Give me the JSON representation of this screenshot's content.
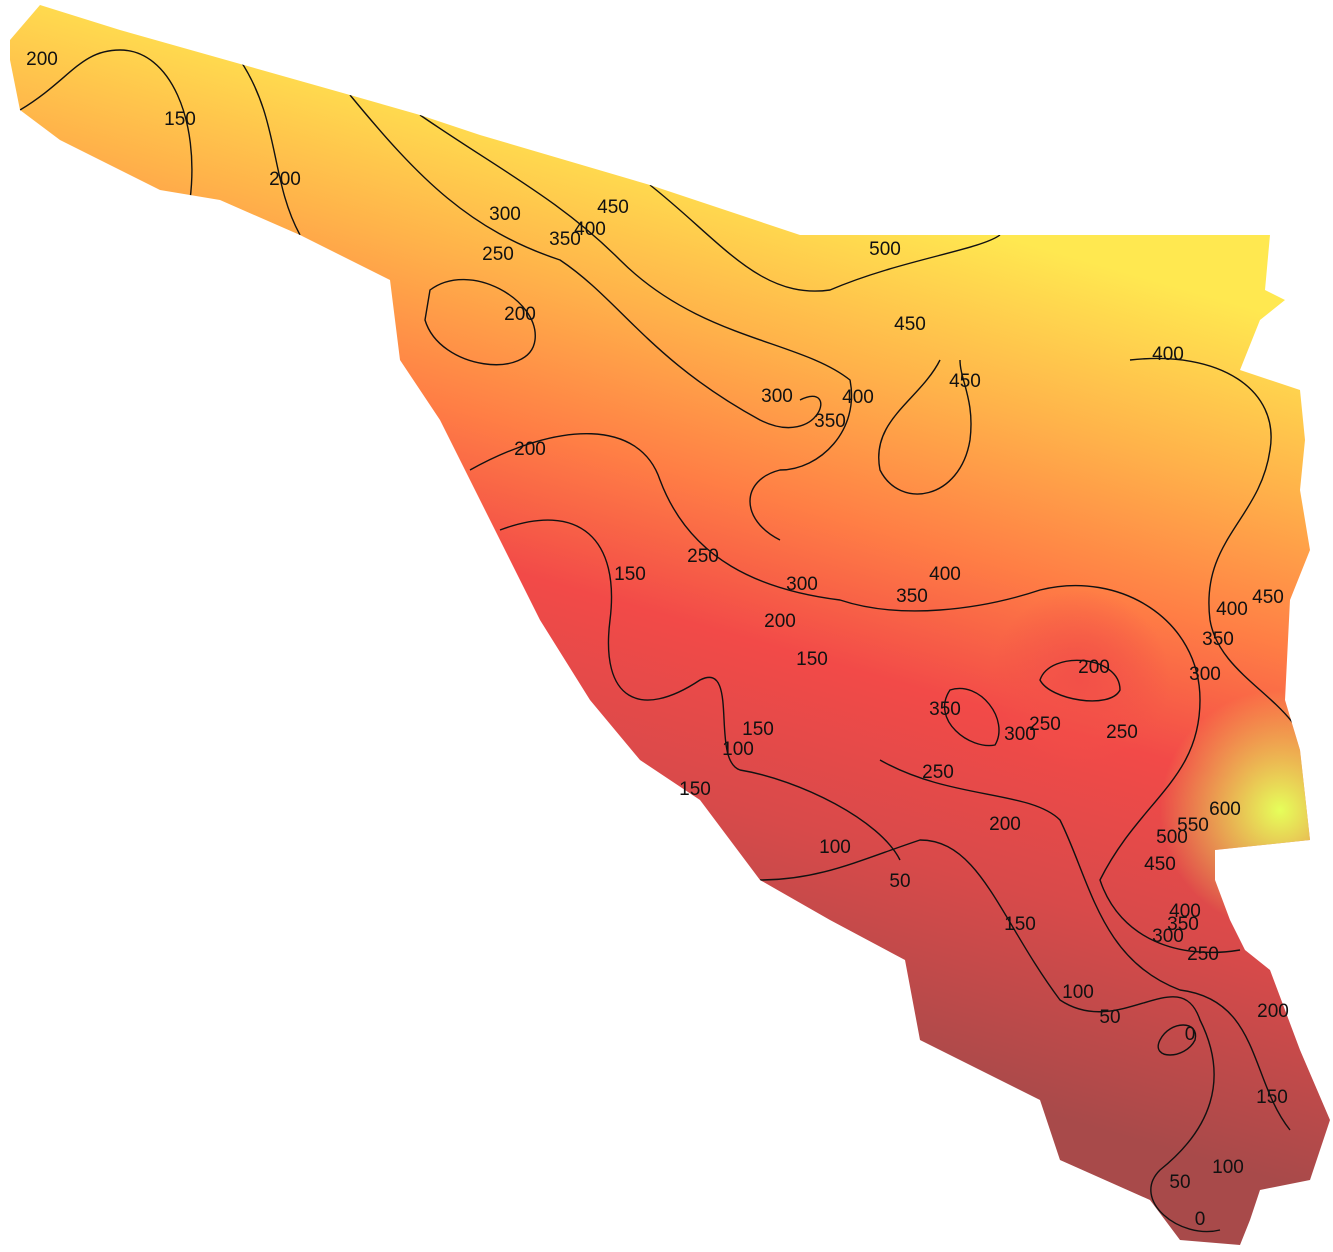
{
  "contour_labels": [
    200,
    150,
    200,
    300,
    250,
    350,
    400,
    450,
    500,
    200,
    450,
    450,
    400,
    300,
    350,
    400,
    200,
    150,
    250,
    300,
    400,
    350,
    450,
    400,
    350,
    300,
    200,
    150,
    200,
    350,
    300,
    250,
    250,
    150,
    100,
    250,
    150,
    200,
    600,
    550,
    500,
    450,
    100,
    50,
    150,
    400,
    350,
    300,
    250,
    100,
    200,
    50,
    0,
    150,
    100,
    50,
    0
  ]
}
